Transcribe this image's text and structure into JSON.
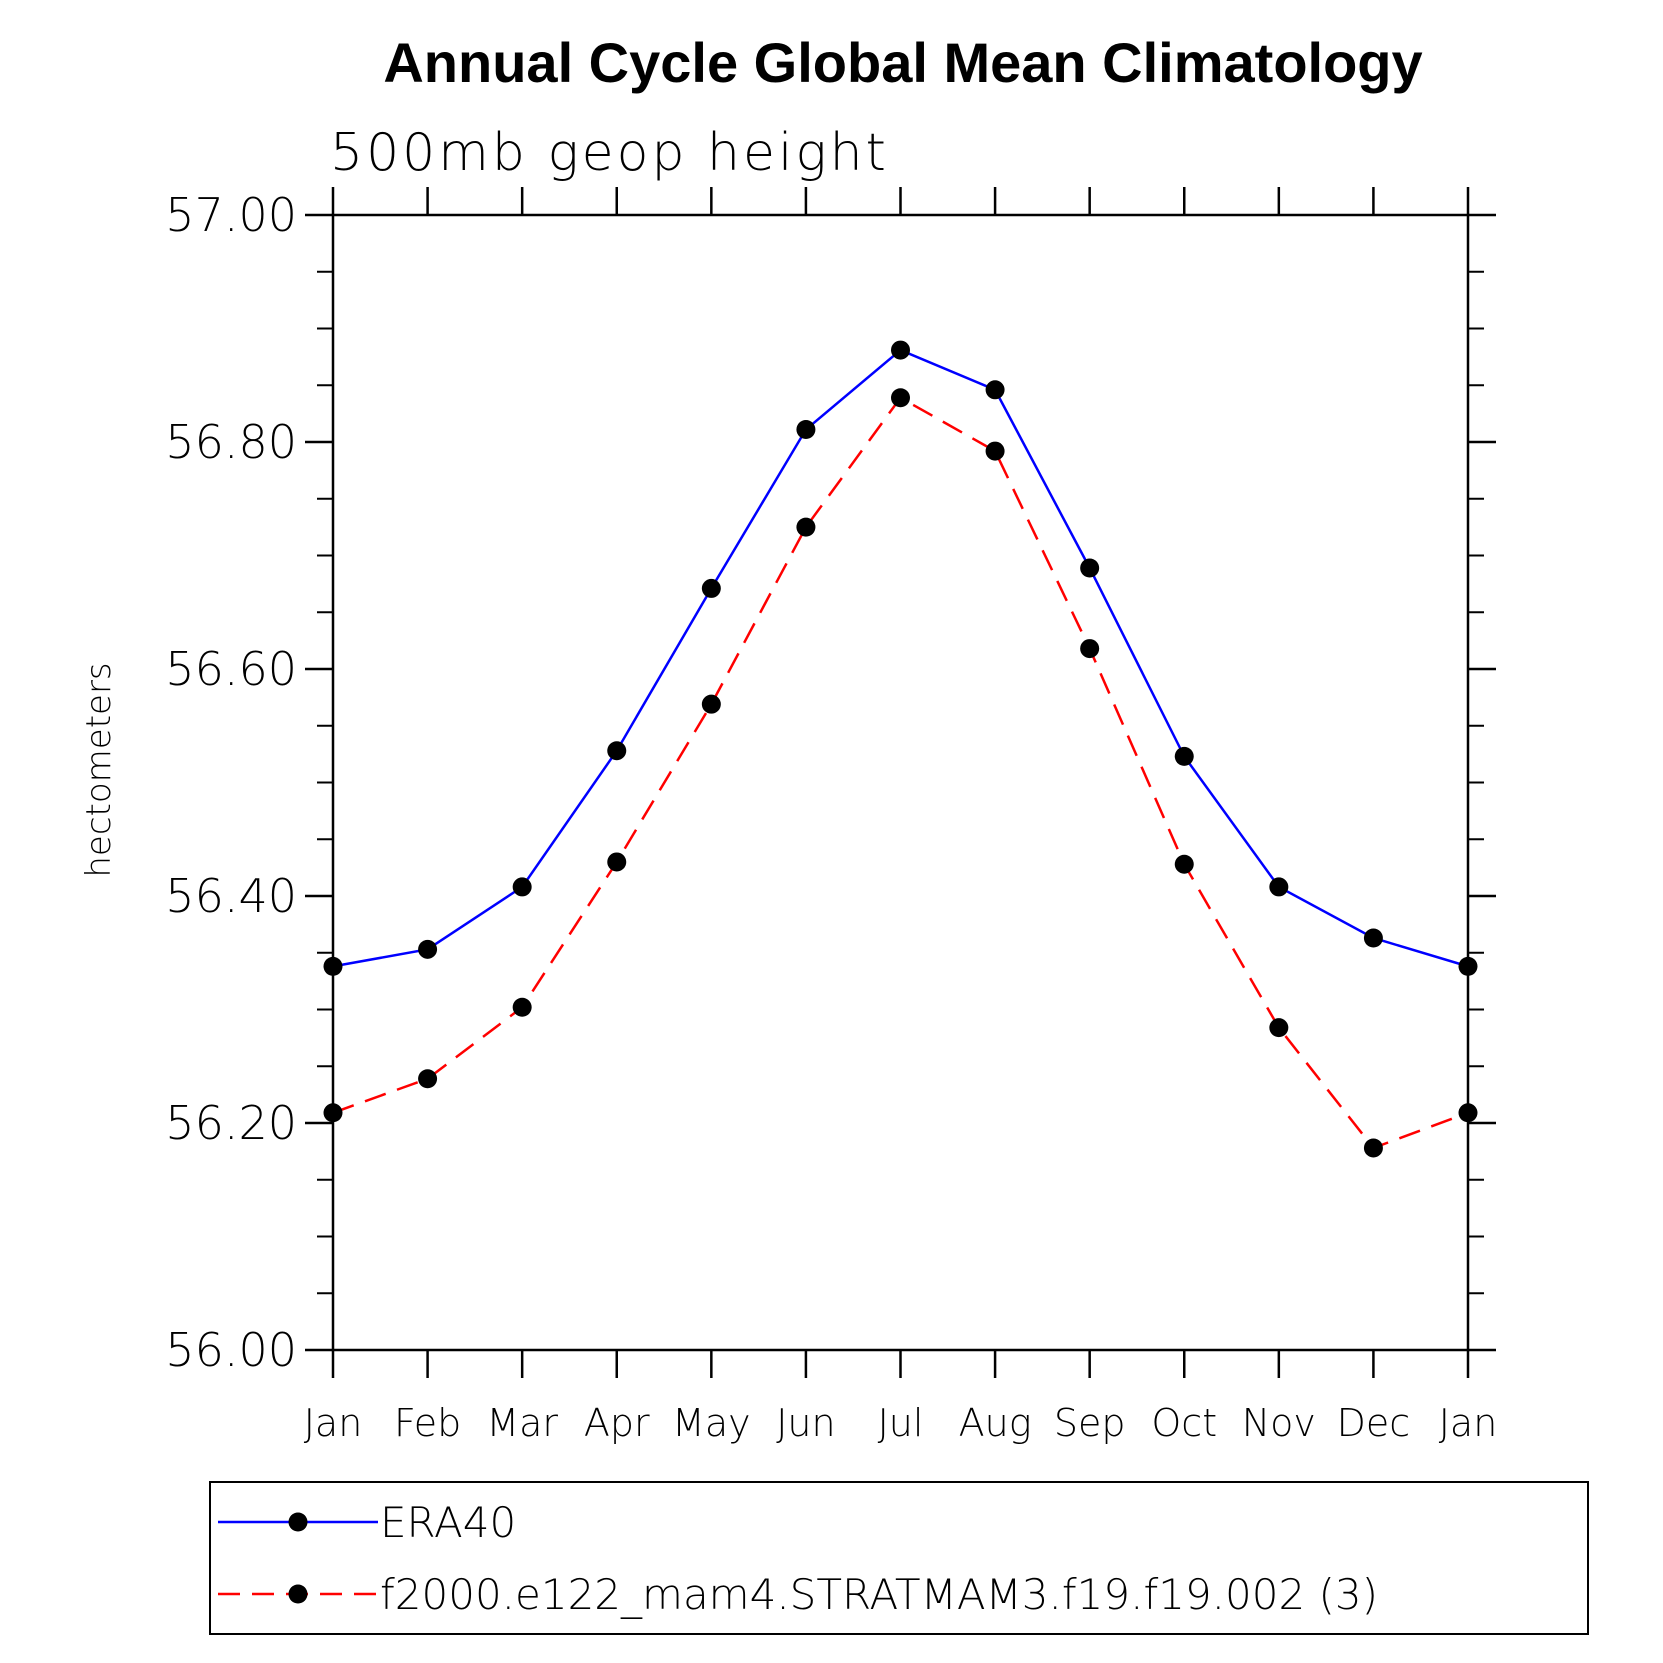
{
  "chart_data": {
    "type": "line",
    "title": "Annual Cycle Global Mean Climatology",
    "subtitle": "500mb geop height",
    "ylabel": "hectometers",
    "xlabel": "",
    "ylim": [
      56.0,
      57.0
    ],
    "yticks": [
      "56.00",
      "56.20",
      "56.40",
      "56.60",
      "56.80",
      "57.00"
    ],
    "ytick_values": [
      56.0,
      56.2,
      56.4,
      56.6,
      56.8,
      57.0
    ],
    "minor_tick_step": 0.05,
    "categories": [
      "Jan",
      "Feb",
      "Mar",
      "Apr",
      "May",
      "Jun",
      "Jul",
      "Aug",
      "Sep",
      "Oct",
      "Nov",
      "Dec",
      "Jan"
    ],
    "series": [
      {
        "name": "ERA40",
        "color": "#0000ff",
        "dash": "solid",
        "marker": "filled-circle",
        "values": [
          56.338,
          56.353,
          56.408,
          56.528,
          56.671,
          56.811,
          56.881,
          56.846,
          56.689,
          56.523,
          56.408,
          56.363,
          56.338
        ]
      },
      {
        "name": "f2000.e122_mam4.STRATMAM3.f19.f19.002 (3)",
        "color": "#ff0000",
        "dash": "dashed",
        "marker": "filled-circle",
        "values": [
          56.209,
          56.239,
          56.302,
          56.43,
          56.569,
          56.725,
          56.839,
          56.792,
          56.618,
          56.428,
          56.284,
          56.178,
          56.209
        ]
      }
    ],
    "legend_position": "bottom"
  }
}
